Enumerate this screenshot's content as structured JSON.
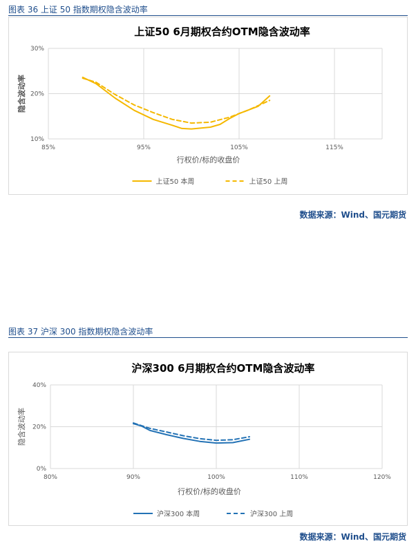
{
  "charts": [
    {
      "caption": "图表 36 上证 50 指数期权隐含波动率",
      "source": "数据来源：Wind、国元期货",
      "chart_data": {
        "type": "line",
        "title": "上证50 6月期权合约OTM隐含波动率",
        "xlabel": "行权价/标的收盘价",
        "ylabel": "隐含波动率",
        "xlim": [
          0.85,
          1.2
        ],
        "ylim": [
          0.1,
          0.3
        ],
        "x_ticks": [
          0.85,
          0.95,
          1.05,
          1.15
        ],
        "x_tick_labels": [
          "85%",
          "95%",
          "105%",
          "115%"
        ],
        "y_ticks": [
          0.1,
          0.2,
          0.3
        ],
        "y_tick_labels": [
          "10%",
          "20%",
          "30%"
        ],
        "grid": true,
        "legend": "bottom",
        "color": "#f5b800",
        "series": [
          {
            "name": "上证50 本周",
            "style": "solid",
            "x": [
              0.886,
              0.9,
              0.92,
              0.94,
              0.96,
              0.98,
              0.99,
              1.0,
              1.02,
              1.03,
              1.04,
              1.05,
              1.07,
              1.082
            ],
            "y": [
              0.236,
              0.222,
              0.19,
              0.163,
              0.143,
              0.13,
              0.123,
              0.122,
              0.126,
              0.132,
              0.145,
              0.156,
              0.172,
              0.195
            ]
          },
          {
            "name": "上证50 上周",
            "style": "dashed",
            "x": [
              0.886,
              0.9,
              0.92,
              0.94,
              0.96,
              0.98,
              1.0,
              1.02,
              1.04,
              1.06,
              1.082
            ],
            "y": [
              0.234,
              0.225,
              0.198,
              0.175,
              0.158,
              0.143,
              0.135,
              0.137,
              0.148,
              0.164,
              0.185
            ]
          }
        ]
      }
    },
    {
      "caption": "图表 37 沪深 300 指数期权隐含波动率",
      "source": "数据来源：Wind、国元期货",
      "chart_data": {
        "type": "line",
        "title": "沪深300 6月期权合约OTM隐含波动率",
        "xlabel": "行权价/标的收盘价",
        "ylabel": "隐含波动率",
        "xlim": [
          0.8,
          1.2
        ],
        "ylim": [
          0.0,
          0.4
        ],
        "x_ticks": [
          0.8,
          0.9,
          1.0,
          1.1,
          1.2
        ],
        "x_tick_labels": [
          "80%",
          "90%",
          "100%",
          "110%",
          "120%"
        ],
        "y_ticks": [
          0.0,
          0.2,
          0.4
        ],
        "y_tick_labels": [
          "0%",
          "20%",
          "40%"
        ],
        "grid": true,
        "legend": "bottom",
        "color": "#2372b5",
        "series": [
          {
            "name": "沪深300 本周",
            "style": "solid",
            "x": [
              0.9,
              0.91,
              0.92,
              0.94,
              0.96,
              0.98,
              1.0,
              1.02,
              1.04
            ],
            "y": [
              0.215,
              0.203,
              0.182,
              0.162,
              0.144,
              0.13,
              0.122,
              0.124,
              0.14
            ]
          },
          {
            "name": "沪深300 上周",
            "style": "dashed",
            "x": [
              0.9,
              0.92,
              0.94,
              0.96,
              0.98,
              1.0,
              1.02,
              1.04
            ],
            "y": [
              0.218,
              0.192,
              0.175,
              0.157,
              0.143,
              0.135,
              0.138,
              0.152
            ]
          }
        ]
      }
    }
  ]
}
